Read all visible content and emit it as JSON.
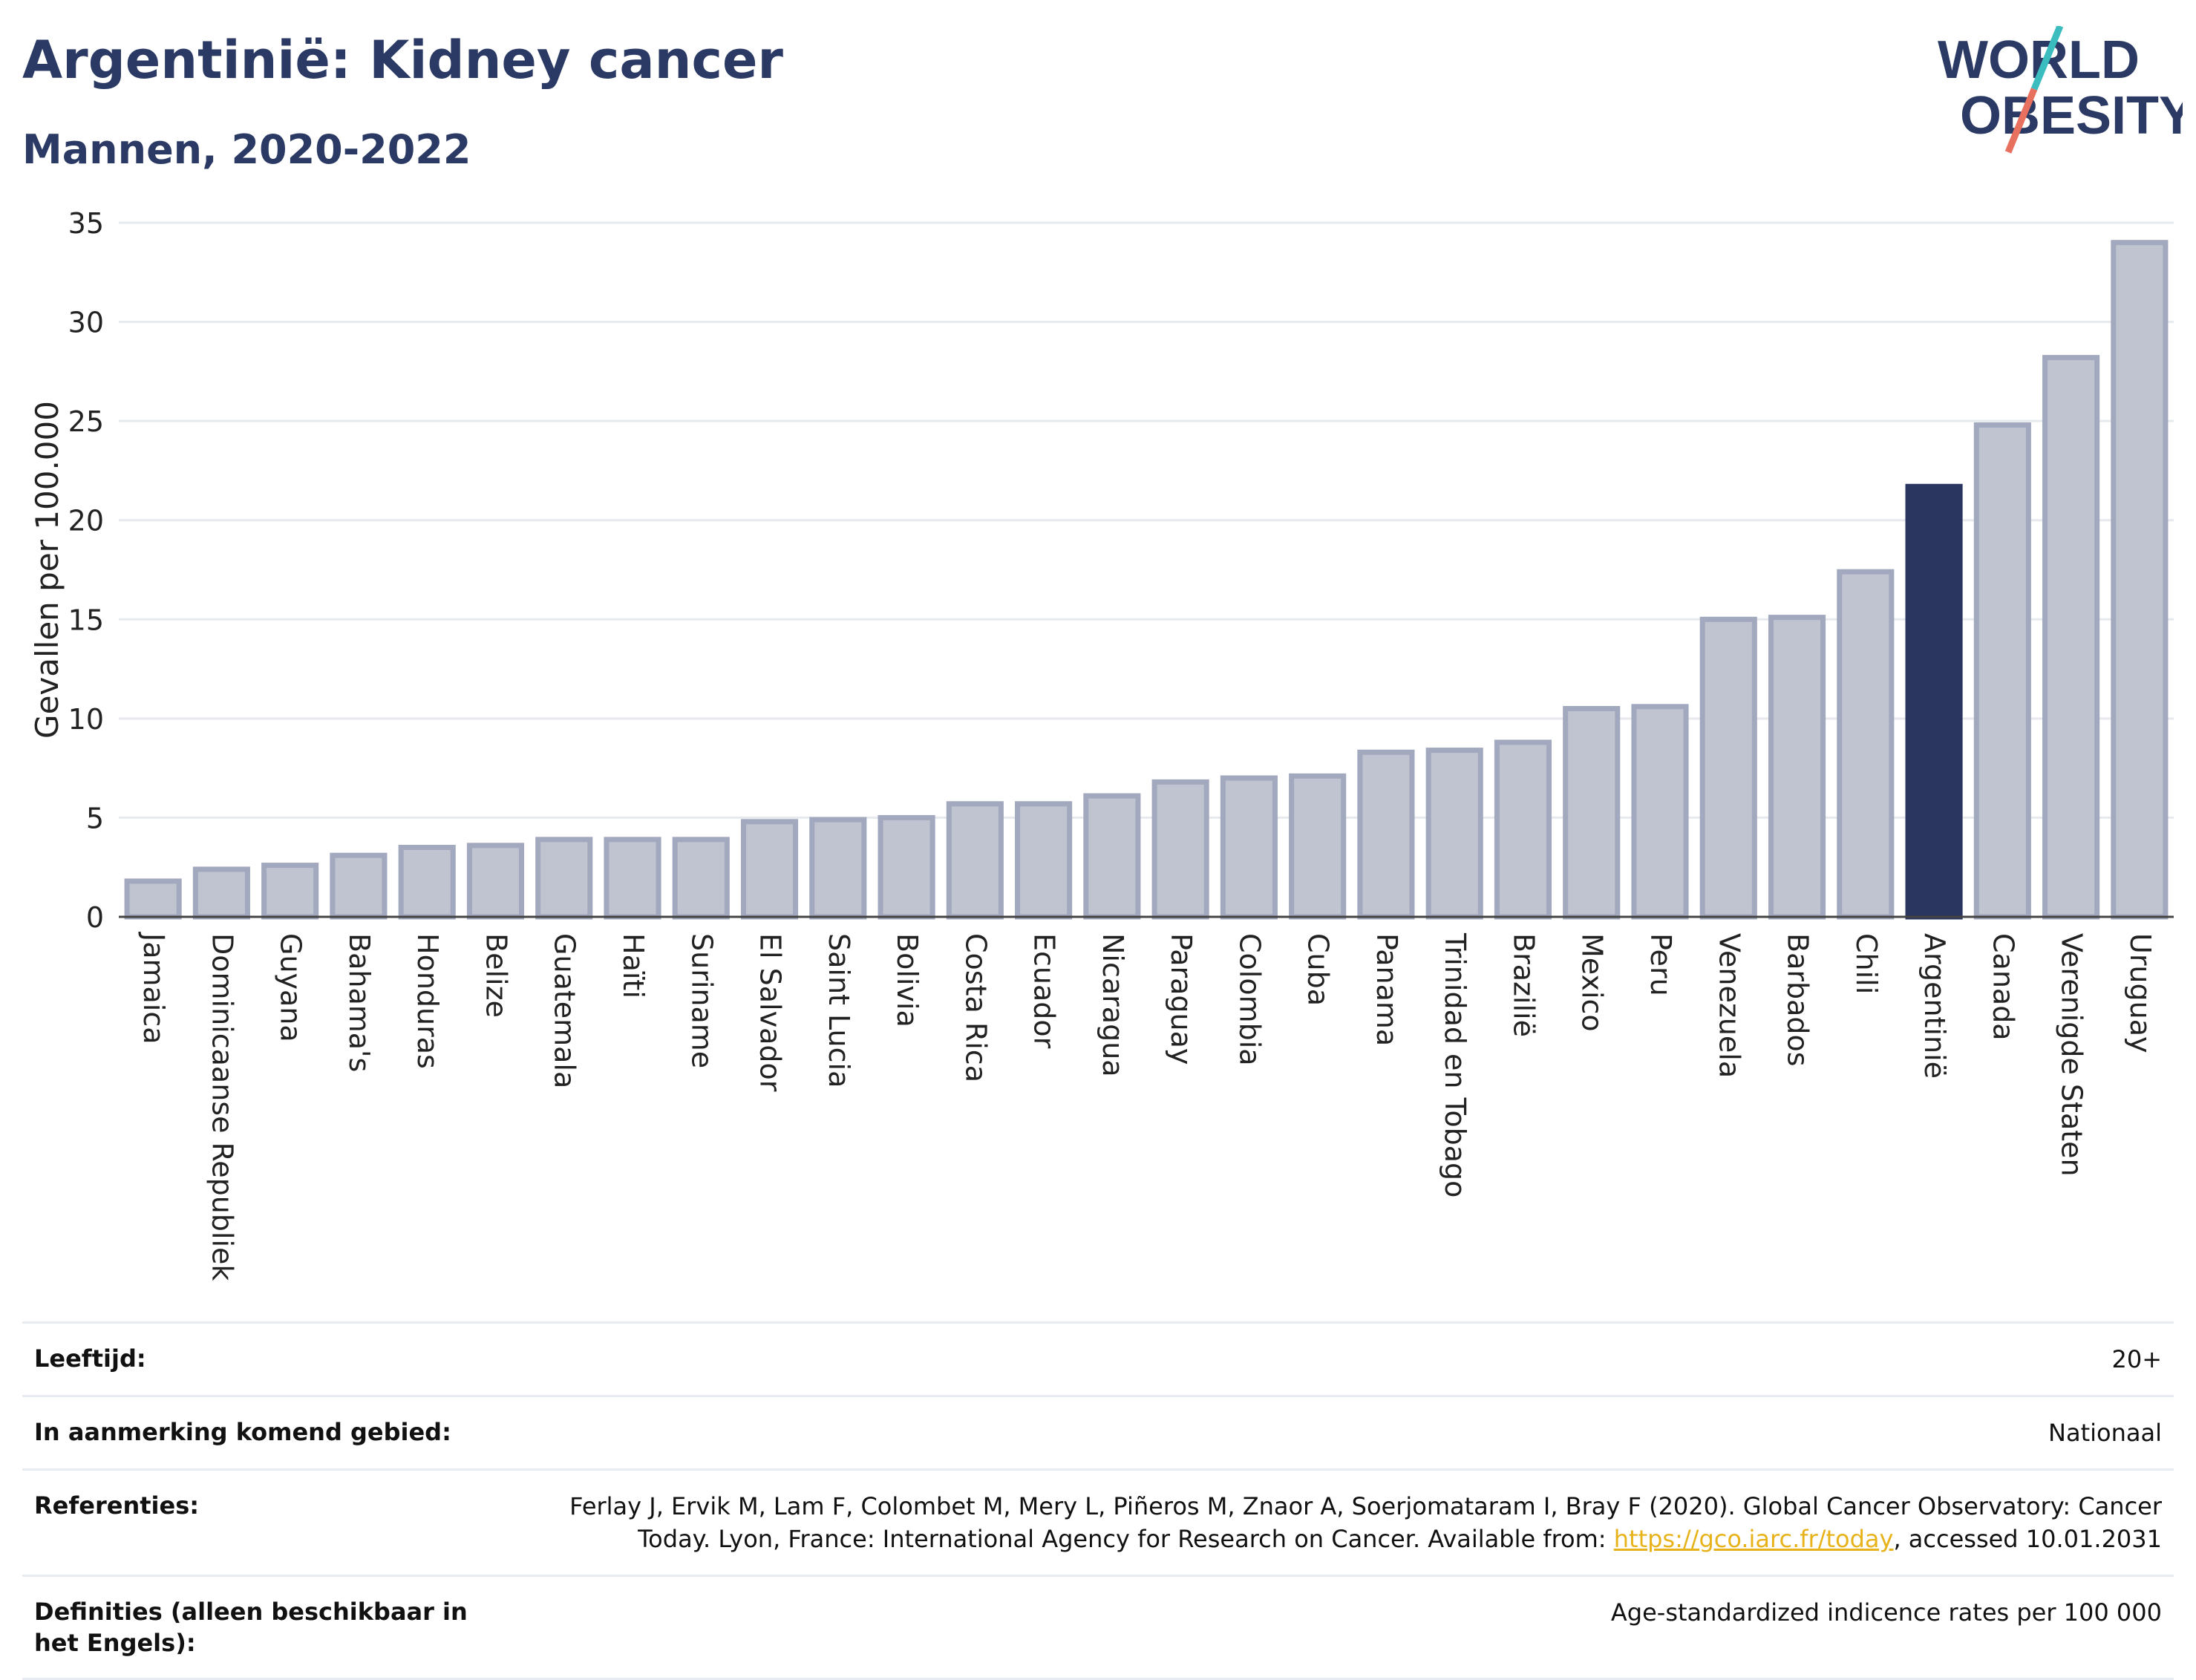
{
  "title": "Argentinië: Kidney cancer",
  "subtitle": "Mannen, 2020-2022",
  "logo": {
    "line1": "WORLD",
    "line2": "OBESITY",
    "accent_teal": "#3bbdc0",
    "accent_red": "#e8705f"
  },
  "colors": {
    "bar": "#c0c3d0",
    "bar_edge": "#a2a8bd",
    "highlight": "#2b3660",
    "text": "#2b3a64",
    "grid": "#e6e9ee"
  },
  "chart_data": {
    "type": "bar",
    "ylabel": "Gevallen per 100.000",
    "ylim": [
      0,
      35
    ],
    "yticks": [
      0,
      5,
      10,
      15,
      20,
      25,
      30,
      35
    ],
    "highlight": "Argentinië",
    "categories": [
      "Jamaica",
      "Dominicaanse Republiek",
      "Guyana",
      "Bahama's",
      "Honduras",
      "Belize",
      "Guatemala",
      "Haïti",
      "Suriname",
      "El Salvador",
      "Saint Lucia",
      "Bolivia",
      "Costa Rica",
      "Ecuador",
      "Nicaragua",
      "Paraguay",
      "Colombia",
      "Cuba",
      "Panama",
      "Trinidad en Tobago",
      "Brazilië",
      "Mexico",
      "Peru",
      "Venezuela",
      "Barbados",
      "Chili",
      "Argentinië",
      "Canada",
      "Verenigde Staten",
      "Uruguay"
    ],
    "values": [
      1.8,
      2.4,
      2.6,
      3.1,
      3.5,
      3.6,
      3.9,
      3.9,
      3.9,
      4.8,
      4.9,
      5.0,
      5.7,
      5.7,
      6.1,
      6.8,
      7.0,
      7.1,
      8.3,
      8.4,
      8.8,
      10.5,
      10.6,
      15.0,
      15.1,
      17.4,
      21.7,
      24.8,
      28.2,
      34.0
    ]
  },
  "meta": {
    "age_label": "Leeftijd:",
    "age_value": "20+",
    "area_label": "In aanmerking komend gebied:",
    "area_value": "Nationaal",
    "ref_label": "Referenties:",
    "ref_text_before": "Ferlay J, Ervik M, Lam F, Colombet M, Mery L, Piñeros M, Znaor A, Soerjomataram I, Bray F (2020). Global Cancer Observatory: Cancer Today. Lyon, France: International Agency for Research on Cancer. Available from: ",
    "ref_link": "https://gco.iarc.fr/today",
    "ref_text_after": ", accessed 10.01.2031",
    "def_label": "Definities (alleen beschikbaar in het Engels):",
    "def_value": "Age-standardized indicence rates per 100 000"
  }
}
